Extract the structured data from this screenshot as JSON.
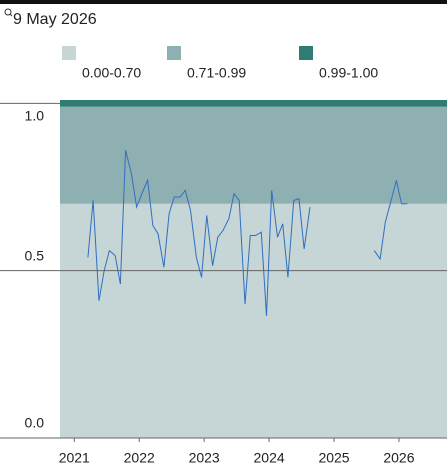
{
  "chart_data": {
    "type": "line",
    "title": "9 May 2026",
    "bands": [
      {
        "label": "0.00-0.70",
        "from": 0,
        "to": 0.7,
        "color": "#c6d5d6"
      },
      {
        "label": "0.71-0.99",
        "from": 0.7,
        "to": 0.99,
        "color": "#8fb0b2"
      },
      {
        "label": "0.99-1.00",
        "from": 0.99,
        "to": 1.01,
        "color": "#2e7d74"
      }
    ],
    "x": [
      2021.21,
      2021.29,
      2021.38,
      2021.46,
      2021.54,
      2021.63,
      2021.71,
      2021.79,
      2021.88,
      2021.96,
      2022.04,
      2022.13,
      2022.21,
      2022.29,
      2022.38,
      2022.46,
      2022.54,
      2022.63,
      2022.71,
      2022.79,
      2022.88,
      2022.96,
      2023.04,
      2023.13,
      2023.21,
      2023.29,
      2023.38,
      2023.46,
      2023.54,
      2023.63,
      2023.71,
      2023.79,
      2023.88,
      2023.96,
      2024.04,
      2024.13,
      2024.21,
      2024.29,
      2024.38,
      2024.46,
      2024.54,
      2024.63,
      2025.13,
      2025.62,
      2025.71,
      2025.79,
      2025.88,
      2025.96,
      2026.04,
      2026.13
    ],
    "series": [
      {
        "color": "#2f6fc2",
        "values": [
          0.54,
          0.71,
          0.41,
          0.5,
          0.56,
          0.545,
          0.46,
          0.86,
          0.79,
          0.69,
          0.73,
          0.77,
          0.635,
          0.61,
          0.51,
          0.67,
          0.72,
          0.72,
          0.74,
          0.68,
          0.54,
          0.48,
          0.665,
          0.515,
          0.6,
          0.62,
          0.655,
          0.73,
          0.71,
          0.4,
          0.605,
          0.605,
          0.615,
          0.365,
          0.74,
          0.6,
          0.64,
          0.48,
          0.71,
          0.715,
          0.565,
          0.69,
          null,
          0.56,
          0.535,
          0.645,
          0.71,
          0.77,
          0.7,
          0.7
        ]
      }
    ],
    "xlim": [
      2020.78,
      2026.74
    ],
    "xticks": [
      2021,
      2022,
      2023,
      2024,
      2025,
      2026
    ],
    "ylim": [
      0,
      1.01
    ],
    "yticks": [
      {
        "value": 0,
        "label": "0.0"
      },
      {
        "value": 0.5,
        "label": "0.5"
      },
      {
        "value": 1,
        "label": "1.0"
      }
    ],
    "grid": true
  }
}
